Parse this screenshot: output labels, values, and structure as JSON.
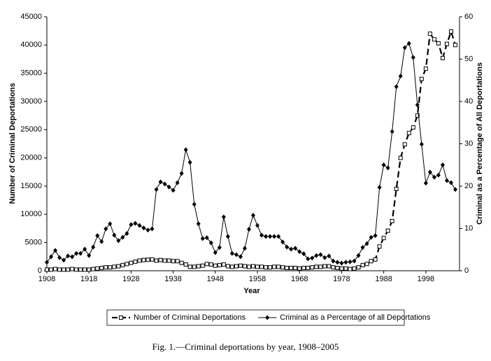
{
  "chart_data": {
    "type": "line",
    "caption": "Fig. 1.—Criminal deportations by year, 1908–2005",
    "x_label": "Year",
    "y_label": "Number of Criminal Deportations",
    "y2_label": "Criminal as a Percentage of All Deportations",
    "x": [
      1908,
      1909,
      1910,
      1911,
      1912,
      1913,
      1914,
      1915,
      1916,
      1917,
      1918,
      1919,
      1920,
      1921,
      1922,
      1923,
      1924,
      1925,
      1926,
      1927,
      1928,
      1929,
      1930,
      1931,
      1932,
      1933,
      1934,
      1935,
      1936,
      1937,
      1938,
      1939,
      1940,
      1941,
      1942,
      1943,
      1944,
      1945,
      1946,
      1947,
      1948,
      1949,
      1950,
      1951,
      1952,
      1953,
      1954,
      1955,
      1956,
      1957,
      1958,
      1959,
      1960,
      1961,
      1962,
      1963,
      1964,
      1965,
      1966,
      1967,
      1968,
      1969,
      1970,
      1971,
      1972,
      1973,
      1974,
      1975,
      1976,
      1977,
      1978,
      1979,
      1980,
      1981,
      1982,
      1983,
      1984,
      1985,
      1986,
      1987,
      1988,
      1989,
      1990,
      1991,
      1992,
      1993,
      1994,
      1995,
      1996,
      1997,
      1998,
      1999,
      2000,
      2001,
      2002,
      2003,
      2004,
      2005
    ],
    "xlim": [
      1908,
      2006
    ],
    "xticks": [
      1908,
      1918,
      1928,
      1938,
      1948,
      1958,
      1968,
      1978,
      1988,
      1998
    ],
    "ylim": [
      0,
      45000
    ],
    "yticks": [
      0,
      5000,
      10000,
      15000,
      20000,
      25000,
      30000,
      35000,
      40000,
      45000
    ],
    "y2lim": [
      0,
      60
    ],
    "y2ticks": [
      0,
      10,
      20,
      30,
      40,
      50,
      60
    ],
    "legend": "bottom",
    "series": [
      {
        "name": "Number of Criminal Deportations",
        "color": "#000000",
        "marker": "square",
        "line_style": "dashed",
        "values": [
          200,
          200,
          300,
          200,
          200,
          200,
          300,
          200,
          200,
          200,
          200,
          300,
          400,
          500,
          600,
          600,
          700,
          800,
          1000,
          1200,
          1400,
          1600,
          1800,
          1900,
          1950,
          2000,
          1800,
          1900,
          1800,
          1800,
          1700,
          1700,
          1400,
          1100,
          700,
          700,
          800,
          900,
          1200,
          1100,
          900,
          1000,
          1100,
          800,
          700,
          800,
          900,
          800,
          700,
          800,
          700,
          700,
          600,
          600,
          700,
          700,
          600,
          500,
          500,
          500,
          400,
          500,
          500,
          600,
          700,
          700,
          800,
          800,
          600,
          500,
          400,
          400,
          300,
          400,
          600,
          1000,
          1200,
          1700,
          2000,
          4300,
          5800,
          7100,
          8800,
          14500,
          20000,
          22400,
          24400,
          25400,
          27500,
          34000,
          35800,
          42000,
          41000,
          40300,
          37700,
          40200,
          42400,
          40000
        ]
      },
      {
        "name": "Criminal as a Percentage of all Deportations",
        "color": "#000000",
        "marker": "diamond",
        "line_style": "solid",
        "axis": "y2",
        "values": [
          2,
          3.3,
          4.8,
          3.1,
          2.5,
          3.5,
          3.3,
          4.1,
          4.1,
          5.1,
          3.6,
          5.6,
          8.3,
          6.9,
          9.9,
          11.1,
          8.4,
          7.1,
          7.9,
          8.8,
          10.9,
          11.2,
          10.7,
          10.1,
          9.6,
          9.9,
          19.2,
          21,
          20.5,
          19.8,
          19,
          20.8,
          23,
          28.6,
          25.6,
          15.7,
          11.1,
          7.6,
          7.8,
          6.6,
          4.3,
          5.5,
          12.7,
          8.1,
          4.1,
          3.8,
          3.3,
          5.3,
          9.8,
          13.1,
          10.7,
          8.4,
          8.1,
          8.1,
          8.1,
          8.1,
          6.8,
          5.6,
          5.1,
          5.3,
          4.5,
          4,
          2.8,
          3,
          3.6,
          3.8,
          3.1,
          3.5,
          2.3,
          2,
          1.8,
          2,
          2.1,
          2.3,
          3.6,
          5.5,
          6.4,
          7.9,
          8.3,
          19.7,
          25,
          24.3,
          32.9,
          43.5,
          46,
          52.7,
          53.7,
          50.4,
          39.2,
          29.9,
          20.7,
          23.3,
          22.1,
          22.6,
          25,
          21.3,
          20.8,
          19.2
        ]
      }
    ]
  }
}
